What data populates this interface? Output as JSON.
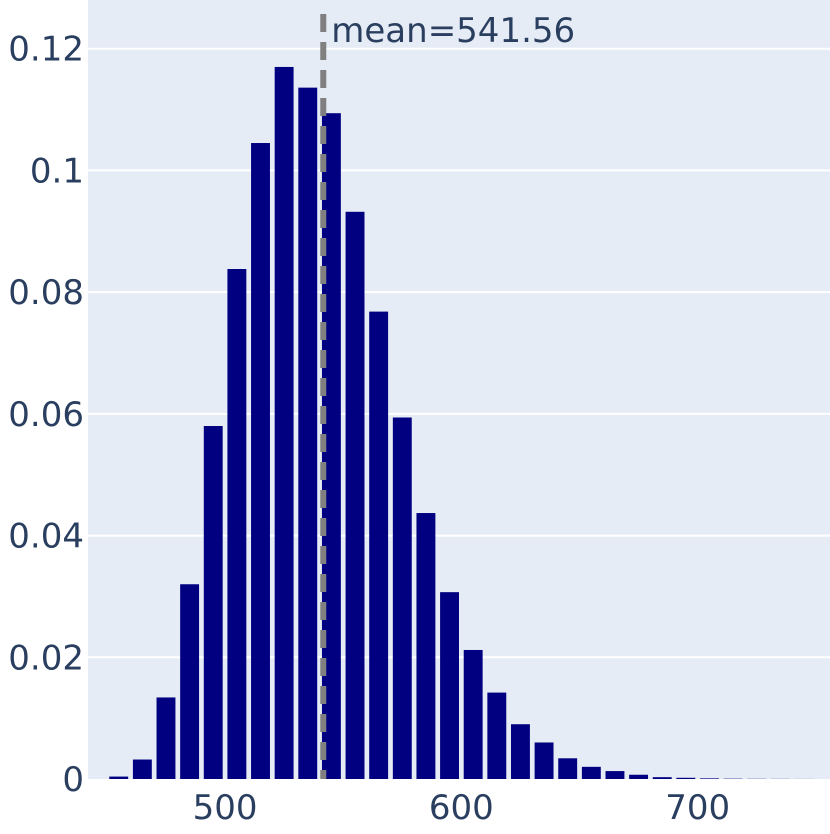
{
  "chart_data": {
    "type": "bar",
    "title": "",
    "xlabel": "",
    "ylabel": "",
    "xlim": [
      442,
      756
    ],
    "ylim": [
      0,
      0.128
    ],
    "x_ticks": [
      500,
      600,
      700
    ],
    "y_ticks": [
      0,
      0.02,
      0.04,
      0.06,
      0.08,
      0.1,
      0.12
    ],
    "x_tick_labels": [
      "500",
      "600",
      "700"
    ],
    "y_tick_labels": [
      "0",
      "0.02",
      "0.04",
      "0.06",
      "0.08",
      "0.1",
      "0.12"
    ],
    "grid": "horizontal",
    "bin_width": 10,
    "bins": [
      {
        "x": 455,
        "y": 0.0004
      },
      {
        "x": 465,
        "y": 0.0032
      },
      {
        "x": 475,
        "y": 0.0134
      },
      {
        "x": 485,
        "y": 0.032
      },
      {
        "x": 495,
        "y": 0.058
      },
      {
        "x": 505,
        "y": 0.0838
      },
      {
        "x": 515,
        "y": 0.1045
      },
      {
        "x": 525,
        "y": 0.117
      },
      {
        "x": 535,
        "y": 0.1136
      },
      {
        "x": 545,
        "y": 0.1094
      },
      {
        "x": 555,
        "y": 0.0932
      },
      {
        "x": 565,
        "y": 0.0768
      },
      {
        "x": 575,
        "y": 0.0594
      },
      {
        "x": 585,
        "y": 0.0437
      },
      {
        "x": 595,
        "y": 0.0307
      },
      {
        "x": 605,
        "y": 0.0212
      },
      {
        "x": 615,
        "y": 0.0142
      },
      {
        "x": 625,
        "y": 0.009
      },
      {
        "x": 635,
        "y": 0.006
      },
      {
        "x": 645,
        "y": 0.0034
      },
      {
        "x": 655,
        "y": 0.002
      },
      {
        "x": 665,
        "y": 0.0013
      },
      {
        "x": 675,
        "y": 0.0007
      },
      {
        "x": 685,
        "y": 0.0003
      },
      {
        "x": 695,
        "y": 0.0002
      },
      {
        "x": 705,
        "y": 0.0001
      },
      {
        "x": 715,
        "y": 5e-05
      },
      {
        "x": 725,
        "y": 3e-05
      },
      {
        "x": 735,
        "y": 2e-05
      },
      {
        "x": 745,
        "y": 1e-05
      }
    ],
    "mean": 541.56,
    "mean_label": "mean=541.56",
    "colors": {
      "bar": "#000080",
      "plot_bg": "#e5ecf6",
      "grid": "#ffffff",
      "mean_line": "#808080",
      "text": "#2a3f5f"
    }
  }
}
